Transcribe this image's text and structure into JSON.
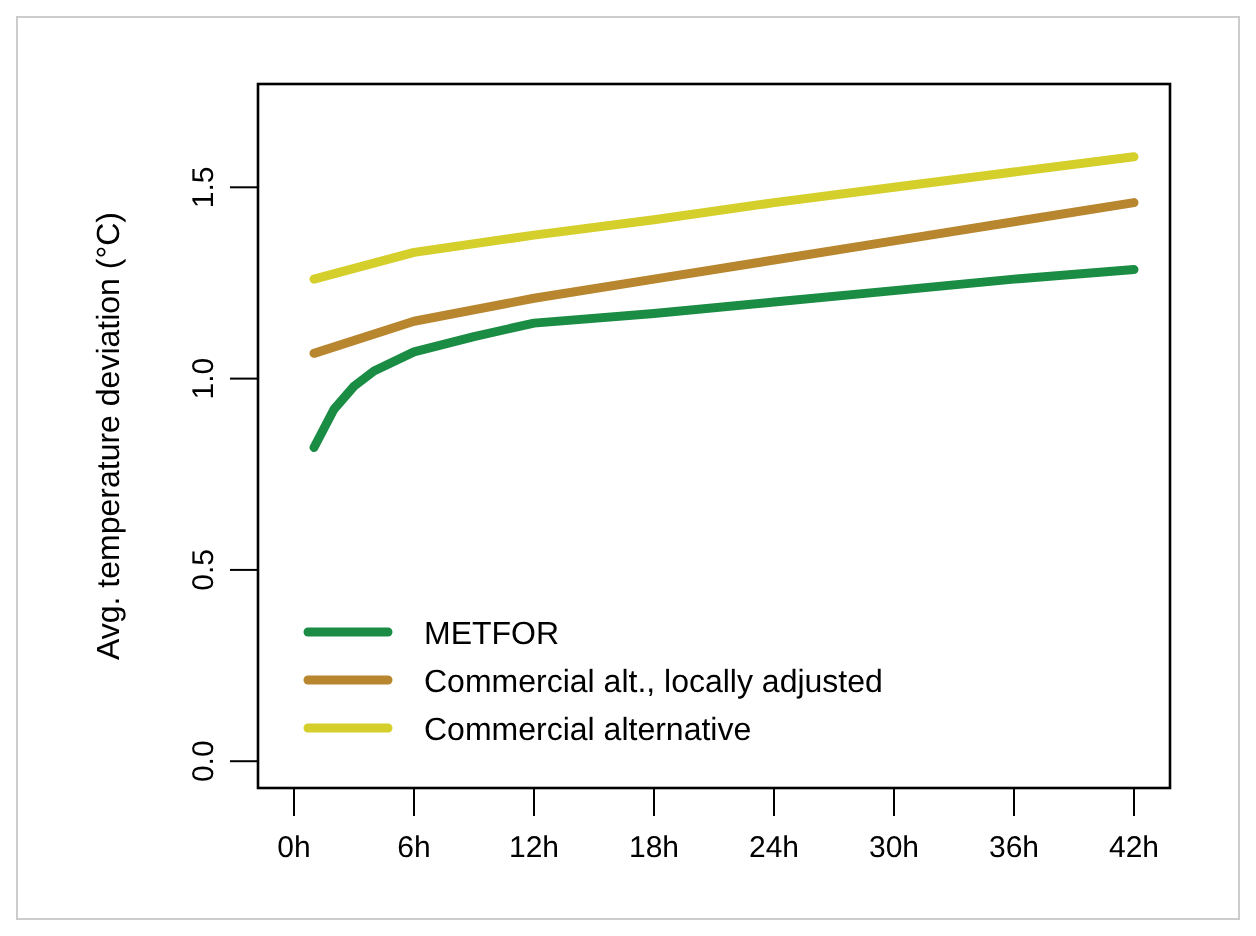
{
  "chart_data": {
    "type": "line",
    "ylabel": "Avg. temperature deviation (°C)",
    "xlim": [
      -1.8,
      43.8
    ],
    "ylim": [
      -0.07,
      1.77
    ],
    "xticks": [
      {
        "value": 0,
        "label": "0h"
      },
      {
        "value": 6,
        "label": "6h"
      },
      {
        "value": 12,
        "label": "12h"
      },
      {
        "value": 18,
        "label": "18h"
      },
      {
        "value": 24,
        "label": "24h"
      },
      {
        "value": 30,
        "label": "30h"
      },
      {
        "value": 36,
        "label": "36h"
      },
      {
        "value": 42,
        "label": "42h"
      }
    ],
    "yticks": [
      {
        "value": 0,
        "label": "0.0"
      },
      {
        "value": 0.5,
        "label": "0.5"
      },
      {
        "value": 1,
        "label": "1.0"
      },
      {
        "value": 1.5,
        "label": "1.5"
      }
    ],
    "grid": false,
    "legend": "bottom left",
    "marker": "none",
    "line_style": "solid",
    "series": [
      {
        "name": "METFOR",
        "color": "#1a8c44",
        "x": [
          1,
          2,
          3,
          4,
          6,
          9,
          12,
          18,
          24,
          30,
          36,
          42
        ],
        "values": [
          0.82,
          0.92,
          0.98,
          1.02,
          1.07,
          1.11,
          1.145,
          1.17,
          1.2,
          1.23,
          1.26,
          1.285
        ]
      },
      {
        "name": "Commercial alt., locally adjusted",
        "color": "#b8862e",
        "x": [
          1,
          6,
          12,
          18,
          24,
          30,
          36,
          42
        ],
        "values": [
          1.066,
          1.15,
          1.21,
          1.26,
          1.31,
          1.36,
          1.41,
          1.46
        ]
      },
      {
        "name": "Commercial alternative",
        "color": "#d4cf2a",
        "x": [
          1,
          6,
          12,
          18,
          24,
          30,
          36,
          42
        ],
        "values": [
          1.26,
          1.33,
          1.375,
          1.415,
          1.46,
          1.5,
          1.54,
          1.58
        ]
      }
    ]
  }
}
